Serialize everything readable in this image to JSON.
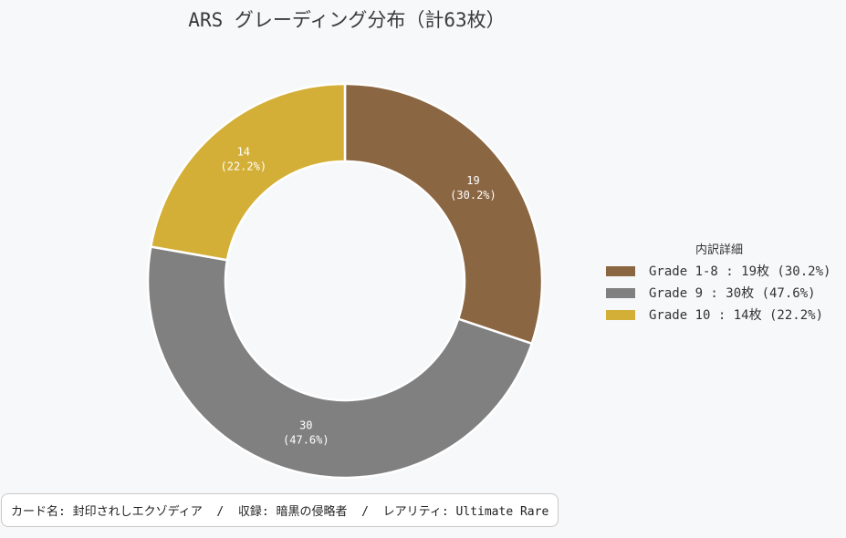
{
  "chart_data": {
    "type": "pie",
    "subtype": "donut",
    "title": "ARS グレーディング分布（計63枚）",
    "categories": [
      "Grade 1-8",
      "Grade 9",
      "Grade 10"
    ],
    "values": [
      19,
      30,
      14
    ],
    "percentages": [
      "30.2%",
      "47.6%",
      "22.2%"
    ],
    "colors": [
      "#8b6642",
      "#808080",
      "#d4af37"
    ],
    "slice_labels": [
      "19\n(30.2%)",
      "30\n(47.6%)",
      "14\n(22.2%)"
    ],
    "legend": {
      "title": "内訳詳細",
      "placement": "right",
      "entries": [
        "Grade 1-8 : 19枚 (30.2%)",
        "Grade 9 : 30枚 (47.6%)",
        "Grade 10 : 14枚 (22.2%)"
      ]
    }
  },
  "footer": {
    "info_text": "カード名: 封印されしエクゾディア  /  収録: 暗黒の侵略者  /  レアリティ: Ultimate Rare"
  }
}
